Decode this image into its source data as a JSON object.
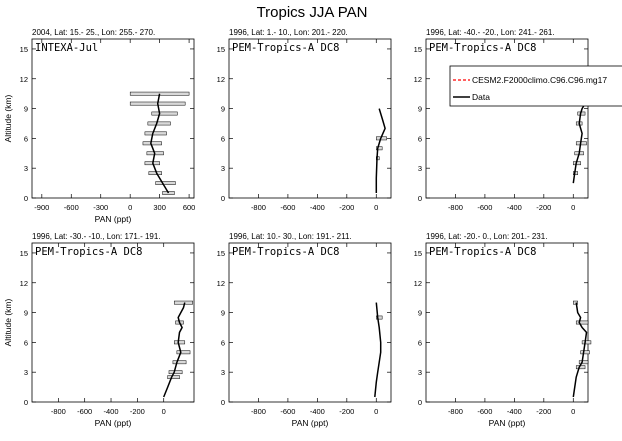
{
  "title": "Tropics JJA PAN",
  "legend": {
    "model_label": "CESM2.F2000climo.C96.C96.mg17",
    "data_label": "Data",
    "model_color": "#ff0000",
    "data_color": "#000000"
  },
  "chart_data": [
    {
      "type": "line",
      "panel_title": "2004, Lat: 15.- 25., Lon: 255.- 270.",
      "campaign": "INTEXA-Jul",
      "xlabel": "PAN (ppt)",
      "ylabel": "Altitude (km)",
      "xlim": [
        -1000,
        650
      ],
      "ylim": [
        0,
        16
      ],
      "xticks": [
        -900,
        -600,
        -300,
        0,
        300,
        600
      ],
      "yticks": [
        0,
        3,
        6,
        9,
        12,
        15
      ],
      "series": [
        {
          "x": [
            390,
            330,
            270,
            230,
            250,
            210,
            230,
            270,
            300,
            280,
            300
          ],
          "y": [
            0.5,
            1.5,
            2.5,
            3.5,
            4.5,
            5.5,
            6.5,
            7.5,
            8.5,
            9.5,
            10.5
          ],
          "xerr_low": [
            330,
            260,
            190,
            150,
            170,
            130,
            150,
            180,
            220,
            0,
            0
          ],
          "xerr_high": [
            450,
            460,
            320,
            300,
            340,
            320,
            370,
            410,
            480,
            560,
            600
          ]
        }
      ]
    },
    {
      "type": "line",
      "panel_title": "1996, Lat: 1.- 10., Lon: 201.- 220.",
      "campaign": "PEM-Tropics-A DC8",
      "xlabel": "",
      "ylabel": "",
      "xlim": [
        -1000,
        100
      ],
      "ylim": [
        0,
        16
      ],
      "xticks": [
        -800,
        -600,
        -400,
        -200,
        0
      ],
      "yticks": [
        0,
        3,
        6,
        9,
        12,
        15
      ],
      "series": [
        {
          "x": [
            0,
            0,
            5,
            10,
            30,
            60,
            40,
            20
          ],
          "y": [
            0.5,
            2,
            4,
            5,
            6,
            7,
            8,
            9
          ],
          "xerr_low": [
            0,
            0,
            0,
            0,
            0,
            0,
            0,
            0
          ],
          "xerr_high": [
            0,
            0,
            20,
            40,
            70,
            0,
            0,
            0
          ]
        }
      ]
    },
    {
      "type": "line",
      "panel_title": "1996, Lat: -40.- -20., Lon: 241.- 261.",
      "campaign": "PEM-Tropics-A DC8",
      "xlabel": "",
      "ylabel": "",
      "xlim": [
        -1000,
        100
      ],
      "ylim": [
        0,
        16
      ],
      "xticks": [
        -800,
        -600,
        -400,
        -200,
        0
      ],
      "yticks": [
        0,
        3,
        6,
        9,
        12,
        15
      ],
      "series": [
        {
          "x": [
            0,
            10,
            20,
            40,
            50,
            60,
            40,
            50,
            60,
            80,
            90
          ],
          "y": [
            1.5,
            2.5,
            3.5,
            4.5,
            5.5,
            6.5,
            7.5,
            8.5,
            9,
            9.5,
            10
          ],
          "xerr_low": [
            0,
            0,
            0,
            10,
            20,
            0,
            20,
            30,
            0,
            0,
            0
          ],
          "xerr_high": [
            0,
            30,
            50,
            70,
            90,
            0,
            60,
            80,
            0,
            0,
            0
          ]
        }
      ]
    },
    {
      "type": "line",
      "panel_title": "1996, Lat: -30.- -10., Lon: 171.- 191.",
      "campaign": "PEM-Tropics-A DC8",
      "xlabel": "PAN (ppt)",
      "ylabel": "Altitude (km)",
      "xlim": [
        -1000,
        230
      ],
      "ylim": [
        0,
        16
      ],
      "xticks": [
        -800,
        -600,
        -400,
        -200,
        0
      ],
      "yticks": [
        0,
        3,
        6,
        9,
        12,
        15
      ],
      "series": [
        {
          "x": [
            0,
            30,
            60,
            80,
            100,
            130,
            110,
            120,
            140,
            120,
            110,
            130,
            150,
            160
          ],
          "y": [
            0.5,
            1.5,
            2.5,
            3,
            4,
            5,
            6,
            7,
            7.5,
            8,
            8.5,
            9,
            9.5,
            10
          ],
          "xerr_low": [
            0,
            0,
            30,
            40,
            70,
            100,
            80,
            0,
            0,
            90,
            0,
            0,
            0,
            80
          ],
          "xerr_high": [
            0,
            0,
            120,
            140,
            170,
            200,
            160,
            0,
            0,
            150,
            0,
            0,
            0,
            220
          ]
        }
      ]
    },
    {
      "type": "line",
      "panel_title": "1996, Lat: 10.- 30., Lon: 191.- 211.",
      "campaign": "PEM-Tropics-A DC8",
      "xlabel": "PAN (ppt)",
      "ylabel": "",
      "xlim": [
        -1000,
        100
      ],
      "ylim": [
        0,
        16
      ],
      "xticks": [
        -800,
        -600,
        -400,
        -200,
        0
      ],
      "yticks": [
        0,
        3,
        6,
        9,
        12,
        15
      ],
      "series": [
        {
          "x": [
            -10,
            0,
            10,
            20,
            30,
            30,
            20,
            10,
            0
          ],
          "y": [
            0.5,
            2,
            3,
            4,
            5,
            6,
            7.5,
            8.5,
            10
          ],
          "xerr_low": [
            0,
            0,
            0,
            0,
            0,
            0,
            0,
            0,
            0
          ],
          "xerr_high": [
            0,
            0,
            0,
            0,
            0,
            0,
            0,
            40,
            0
          ]
        }
      ]
    },
    {
      "type": "line",
      "panel_title": "1996, Lat: -20.- 0., Lon: 201.- 231.",
      "campaign": "PEM-Tropics-A DC8",
      "xlabel": "PAN (ppt)",
      "ylabel": "",
      "xlim": [
        -1000,
        100
      ],
      "ylim": [
        0,
        16
      ],
      "xticks": [
        -800,
        -600,
        -400,
        -200,
        0
      ],
      "yticks": [
        0,
        3,
        6,
        9,
        12,
        15
      ],
      "series": [
        {
          "x": [
            0,
            20,
            40,
            60,
            70,
            80,
            90,
            60,
            40,
            50,
            30,
            20
          ],
          "y": [
            0.5,
            2.5,
            3.5,
            4,
            5,
            6,
            7,
            7.5,
            8,
            8.5,
            9,
            10
          ],
          "xerr_low": [
            0,
            0,
            20,
            40,
            50,
            60,
            0,
            0,
            20,
            0,
            0,
            0
          ],
          "xerr_high": [
            0,
            0,
            80,
            100,
            110,
            120,
            0,
            0,
            100,
            0,
            0,
            30
          ]
        }
      ]
    }
  ]
}
